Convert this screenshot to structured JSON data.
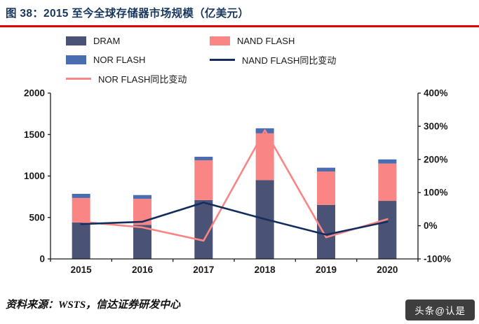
{
  "title": "图 38：2015 至今全球存储器市场规模（亿美元）",
  "source": "资料来源：WSTS，信达证券研发中心",
  "watermark": "头条@认是",
  "colors": {
    "dram": "#4a5376",
    "nand": "#fa8585",
    "nor": "#4a6cb0",
    "nand_yoy_line": "#132e5e",
    "nor_yoy_line": "#fa8585",
    "title_text": "#17375e",
    "rule": "#e60000",
    "axis": "#1a1a1a"
  },
  "chart_data": {
    "type": "stacked-bar+line",
    "title": "2015 至今全球存储器市场规模（亿美元）",
    "categories": [
      "2015",
      "2016",
      "2017",
      "2018",
      "2019",
      "2020"
    ],
    "bar_series": [
      {
        "name": "DRAM",
        "color_key": "dram",
        "values": [
          440,
          410,
          710,
          950,
          650,
          700
        ]
      },
      {
        "name": "NAND FLASH",
        "color_key": "nand",
        "values": [
          295,
          315,
          480,
          565,
          405,
          450
        ]
      },
      {
        "name": "NOR FLASH",
        "color_key": "nor",
        "values": [
          50,
          45,
          42,
          60,
          45,
          50
        ]
      }
    ],
    "line_series": [
      {
        "name": "NOR FLASH同比变动",
        "color_key": "nor_yoy_line",
        "axis": "right",
        "values": [
          12,
          -5,
          -45,
          288,
          -35,
          20
        ]
      },
      {
        "name": "NAND FLASH同比变动",
        "color_key": "nand_yoy_line",
        "axis": "right",
        "values": [
          5,
          12,
          70,
          20,
          -27,
          12
        ]
      }
    ],
    "left_axis": {
      "min": 0,
      "max": 2000,
      "ticks": [
        0,
        500,
        1000,
        1500,
        2000
      ]
    },
    "right_axis": {
      "min": -100,
      "max": 400,
      "tick_values": [
        -100,
        0,
        100,
        200,
        300,
        400
      ],
      "tick_labels": [
        "-100%",
        "0%",
        "100%",
        "200%",
        "300%",
        "400%"
      ]
    },
    "grid": false,
    "legend_position": "top-left",
    "legend_items": [
      {
        "label": "DRAM",
        "swatch": "bar",
        "color_key": "dram"
      },
      {
        "label": "NAND FLASH",
        "swatch": "bar",
        "color_key": "nand"
      },
      {
        "label": "NOR FLASH",
        "swatch": "bar",
        "color_key": "nor"
      },
      {
        "label": "NAND FLASH同比变动",
        "swatch": "line",
        "color_key": "nand_yoy_line"
      },
      {
        "label": "NOR FLASH同比变动",
        "swatch": "line",
        "color_key": "nor_yoy_line"
      }
    ]
  }
}
